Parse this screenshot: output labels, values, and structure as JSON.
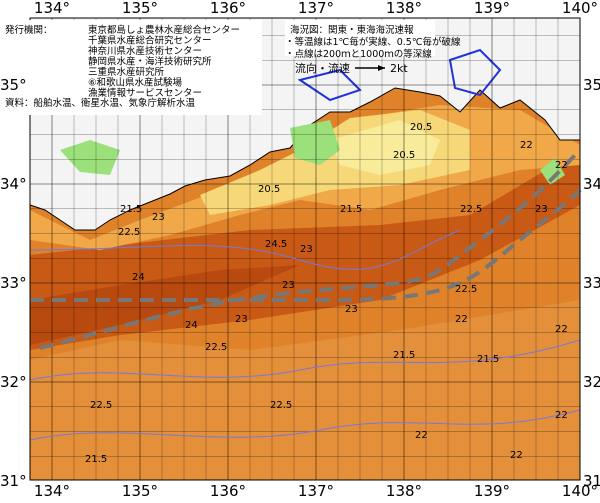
{
  "axes": {
    "top": [
      "134°",
      "135°",
      "136°",
      "137°",
      "138°",
      "139°",
      "140°"
    ],
    "bottom": [
      "134°",
      "135°",
      "136°",
      "137°",
      "138°",
      "139°",
      "140°"
    ],
    "left": [
      "35°",
      "34°",
      "33°",
      "32°",
      "31°"
    ],
    "right": [
      "35°",
      "34°",
      "33°",
      "32°",
      "31°"
    ]
  },
  "publisher": {
    "label": "発行機関：",
    "agencies": [
      "東京都島しょ農林水産総合センター",
      "千葉県水産総合研究センター",
      "神奈川県水産技術センター",
      "静岡県水産・海洋技術研究所",
      "三重県水産研究所",
      "⑥和歌山県水産試験場",
      "漁業情報サービスセンター"
    ],
    "source": "資料：船舶水温、衛星水温、気象庁解析水温"
  },
  "notes": {
    "title": "海況図：関東・東海海況速報",
    "lines": [
      "・等温線は1℃毎が実線、0.5℃毎が破線",
      "・点線は200ｍと1000ｍの等深線"
    ],
    "legend_label": "流向・流速",
    "legend_scale": "2kt"
  },
  "contour_labels": [
    "20.5",
    "20.5",
    "22",
    "22",
    "21.5",
    "22.5",
    "23",
    "22.5",
    "23",
    "24",
    "24.5",
    "23",
    "23",
    "24",
    "23",
    "22.5",
    "23",
    "22.5",
    "22",
    "21.5",
    "21.5",
    "22",
    "22.5",
    "22.5",
    "21.5",
    "22",
    "22",
    "22",
    "20.5",
    "21.5"
  ]
}
